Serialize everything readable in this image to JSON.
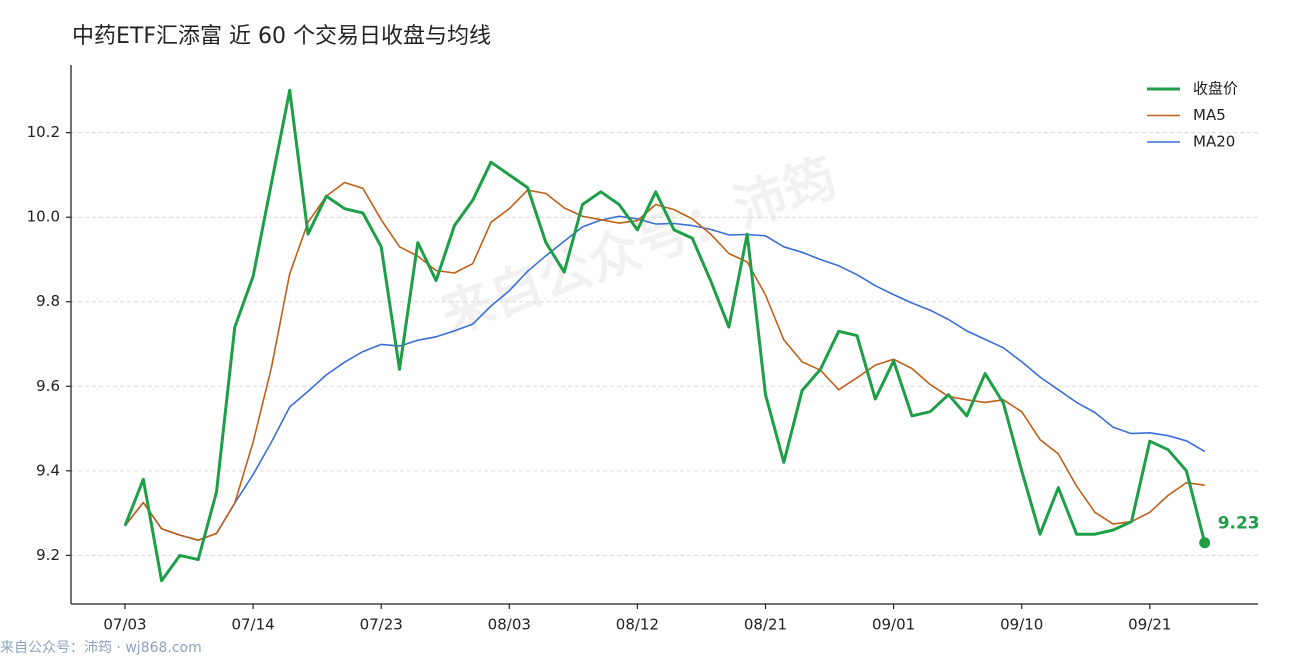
{
  "chart_data": {
    "type": "line",
    "title": "中药ETF汇添富 近 60 个交易日收盘与均线",
    "watermark": "来自公众号：沛筠",
    "footer": "来自公众号：沛筠 · wj868.com",
    "categories": [
      "07/03",
      null,
      null,
      null,
      null,
      null,
      null,
      "07/14",
      null,
      null,
      null,
      null,
      null,
      null,
      "07/23",
      null,
      null,
      null,
      null,
      null,
      null,
      "08/03",
      null,
      null,
      null,
      null,
      null,
      null,
      "08/12",
      null,
      null,
      null,
      null,
      null,
      null,
      "08/21",
      null,
      null,
      null,
      null,
      null,
      null,
      "09/01",
      null,
      null,
      null,
      null,
      null,
      null,
      "09/10",
      null,
      null,
      null,
      null,
      null,
      null,
      "09/21",
      null,
      null,
      null
    ],
    "series": [
      {
        "name": "收盘价",
        "color": "#1f9e48",
        "width": 3,
        "values": [
          9.27,
          9.38,
          9.14,
          9.2,
          9.19,
          9.35,
          9.74,
          9.86,
          10.08,
          10.3,
          9.96,
          10.05,
          10.02,
          10.01,
          9.93,
          9.64,
          9.94,
          9.85,
          9.98,
          10.04,
          10.13,
          10.1,
          10.07,
          9.94,
          9.87,
          10.03,
          10.06,
          10.03,
          9.97,
          10.06,
          9.97,
          9.95,
          9.85,
          9.74,
          9.96,
          9.58,
          9.42,
          9.59,
          9.64,
          9.73,
          9.72,
          9.57,
          9.66,
          9.53,
          9.54,
          9.58,
          9.53,
          9.63,
          9.56,
          9.4,
          9.25,
          9.36,
          9.25,
          9.25,
          9.26,
          9.28,
          9.47,
          9.45,
          9.4,
          9.23
        ]
      },
      {
        "name": "MA5",
        "color": "#c0601a",
        "width": 1.6,
        "values": [
          9.27,
          9.325,
          9.263,
          9.248,
          9.236,
          9.252,
          9.324,
          9.468,
          9.644,
          9.866,
          9.988,
          10.05,
          10.082,
          10.068,
          9.994,
          9.93,
          9.908,
          9.874,
          9.868,
          9.89,
          9.988,
          10.02,
          10.064,
          10.056,
          10.022,
          10.002,
          9.994,
          9.986,
          9.992,
          10.03,
          10.018,
          9.996,
          9.96,
          9.914,
          9.894,
          9.816,
          9.71,
          9.658,
          9.638,
          9.592,
          9.62,
          9.65,
          9.664,
          9.642,
          9.604,
          9.576,
          9.568,
          9.562,
          9.568,
          9.54,
          9.474,
          9.44,
          9.364,
          9.302,
          9.274,
          9.28,
          9.302,
          9.342,
          9.372,
          9.366
        ]
      },
      {
        "name": "MA20",
        "color": "#3a6fd8",
        "width": 1.6,
        "values": [
          9.27,
          9.325,
          9.263,
          9.248,
          9.236,
          9.252,
          9.324,
          9.391,
          9.468,
          9.551,
          9.588,
          9.627,
          9.657,
          9.682,
          9.699,
          9.695,
          9.709,
          9.717,
          9.731,
          9.747,
          9.79,
          9.826,
          9.872,
          9.909,
          9.943,
          9.977,
          9.993,
          10.002,
          9.996,
          9.984,
          9.985,
          9.98,
          9.971,
          9.958,
          9.959,
          9.956,
          9.93,
          9.917,
          9.9,
          9.885,
          9.864,
          9.838,
          9.817,
          9.797,
          9.78,
          9.758,
          9.731,
          9.711,
          9.691,
          9.658,
          9.622,
          9.592,
          9.562,
          9.538,
          9.503,
          9.488,
          9.49,
          9.483,
          9.471,
          9.446
        ]
      }
    ],
    "ylim": [
      9.085,
      10.36
    ],
    "yticks": [
      9.2,
      9.4,
      9.6,
      9.8,
      {
        "value": 10,
        "label": "10.0"
      },
      10.2
    ],
    "grid": true,
    "legend": "upper right"
  }
}
